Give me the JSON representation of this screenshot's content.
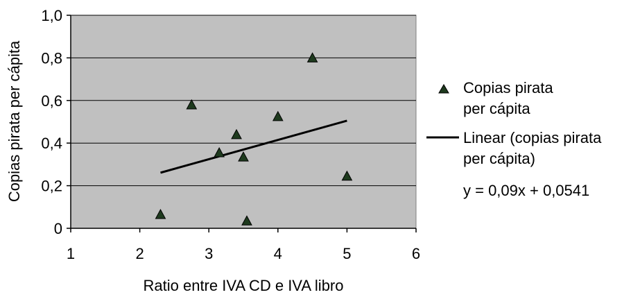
{
  "chart_data": {
    "type": "scatter",
    "xlabel": "Ratio entre IVA CD e IVA libro",
    "ylabel": "Copias pirata per cápita",
    "xlim": [
      1,
      6
    ],
    "ylim": [
      0,
      1.0
    ],
    "xticks": [
      1,
      2,
      3,
      4,
      5,
      6
    ],
    "xtick_labels": [
      "1",
      "2",
      "3",
      "4",
      "5",
      "6"
    ],
    "yticks": [
      0,
      0.2,
      0.4,
      0.6,
      0.8,
      1.0
    ],
    "ytick_labels": [
      "0",
      "0,2",
      "0,4",
      "0,6",
      "0,8",
      "1,0"
    ],
    "grid": "horizontal",
    "plot_background": "#c0c0c0",
    "series": [
      {
        "name": "Copias pirata per cápita",
        "marker": "triangle",
        "color": "#1e3a1e",
        "x": [
          2.3,
          2.75,
          3.15,
          3.4,
          3.5,
          3.55,
          4.0,
          4.5,
          5.0
        ],
        "y": [
          0.065,
          0.58,
          0.355,
          0.44,
          0.335,
          0.035,
          0.525,
          0.8,
          0.245
        ]
      }
    ],
    "trendline": {
      "name": "Linear (copias pirata per cápita)",
      "equation": "y = 0,09x + 0,0541",
      "x": [
        2.3,
        5.0
      ],
      "y": [
        0.261,
        0.505
      ],
      "color": "#000000"
    },
    "legend": {
      "position": "right",
      "marker_label_lines": [
        "Copias pirata",
        "per cápita"
      ],
      "line_label_lines": [
        "Linear (copias pirata",
        "per cápita)"
      ]
    }
  }
}
